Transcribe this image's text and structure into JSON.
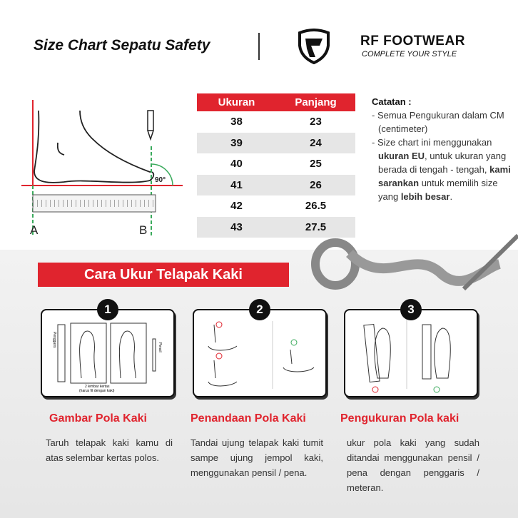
{
  "header": {
    "title": "Size Chart Sepatu Safety",
    "brand": "RF FOOTWEAR",
    "tagline": "COMPLETE YOUR STYLE"
  },
  "diagram": {
    "angle": "90°",
    "point_a": "A",
    "point_b": "B"
  },
  "size_table": {
    "headers": [
      "Ukuran",
      "Panjang"
    ],
    "rows": [
      [
        "38",
        "23"
      ],
      [
        "39",
        "24"
      ],
      [
        "40",
        "25"
      ],
      [
        "41",
        "26"
      ],
      [
        "42",
        "26.5"
      ],
      [
        "43",
        "27.5"
      ]
    ]
  },
  "notes": {
    "title": "Catatan :",
    "item1": "- Semua Pengukuran dalam CM (centimeter)",
    "item2_a": "- Size chart ini menggunakan ",
    "item2_b": "ukuran EU",
    "item2_c": ", untuk ukuran yang berada di tengah - tengah, ",
    "item2_d": "kami sarankan",
    "item2_e": " untuk memilih size yang ",
    "item2_f": "lebih besar",
    "item2_g": "."
  },
  "banner": "Cara Ukur Telapak Kaki",
  "steps": [
    {
      "number": "1",
      "title": "Gambar Pola Kaki",
      "text": "Taruh telapak kaki kamu di atas selembar kertas polos.",
      "labels": {
        "ruler": "Penggaris",
        "pencil": "Pensil",
        "paper": "2 lembar kertas",
        "paper_note": "(harus fit dengan kaki)"
      }
    },
    {
      "number": "2",
      "title": "Penandaan Pola Kaki",
      "text": "Tandai ujung telapak kaki tumit sampe ujung jempol kaki, menggunakan pensil / pena."
    },
    {
      "number": "3",
      "title": "Pengukuran Pola kaki",
      "text": "ukur pola kaki yang sudah ditandai menggunakan pensil / pena dengan penggaris / meteran."
    }
  ],
  "colors": {
    "accent": "#e0242e",
    "ok": "#3aaa5c",
    "bad": "#e0242e"
  }
}
